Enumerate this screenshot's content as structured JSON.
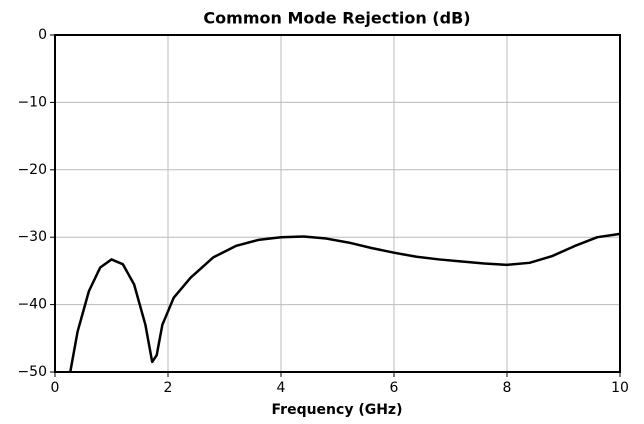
{
  "chart_data": {
    "type": "line",
    "title": "Common Mode Rejection (dB)",
    "x_label": "Frequency (GHz)",
    "series": [
      {
        "color": "#000000",
        "x": [
          0.27,
          0.4,
          0.6,
          0.8,
          1.0,
          1.2,
          1.4,
          1.6,
          1.72,
          1.8,
          1.9,
          2.1,
          2.4,
          2.8,
          3.2,
          3.6,
          4.0,
          4.4,
          4.8,
          5.2,
          5.6,
          6.0,
          6.4,
          6.8,
          7.2,
          7.6,
          8.0,
          8.4,
          8.8,
          9.2,
          9.6,
          10.0
        ],
        "values": [
          -50,
          -44,
          -38,
          -34.5,
          -33.3,
          -34,
          -37,
          -43,
          -48.5,
          -47.5,
          -43,
          -39,
          -36,
          -33,
          -31.3,
          -30.4,
          -30,
          -29.9,
          -30.2,
          -30.8,
          -31.6,
          -32.3,
          -32.9,
          -33.3,
          -33.6,
          -33.9,
          -34.1,
          -33.8,
          -32.8,
          -31.3,
          -30,
          -29.5
        ]
      }
    ],
    "xlim": [
      0,
      10
    ],
    "xticks": [
      0,
      2,
      4,
      6,
      8,
      10
    ],
    "ylim": [
      -50,
      0
    ],
    "yticks": [
      {
        "value": -50,
        "label": "−50"
      },
      {
        "value": -40,
        "label": "−40"
      },
      {
        "value": -30,
        "label": "−30"
      },
      {
        "value": -20,
        "label": "−20"
      },
      {
        "value": -10,
        "label": "−10"
      },
      0
    ],
    "grid": true
  }
}
